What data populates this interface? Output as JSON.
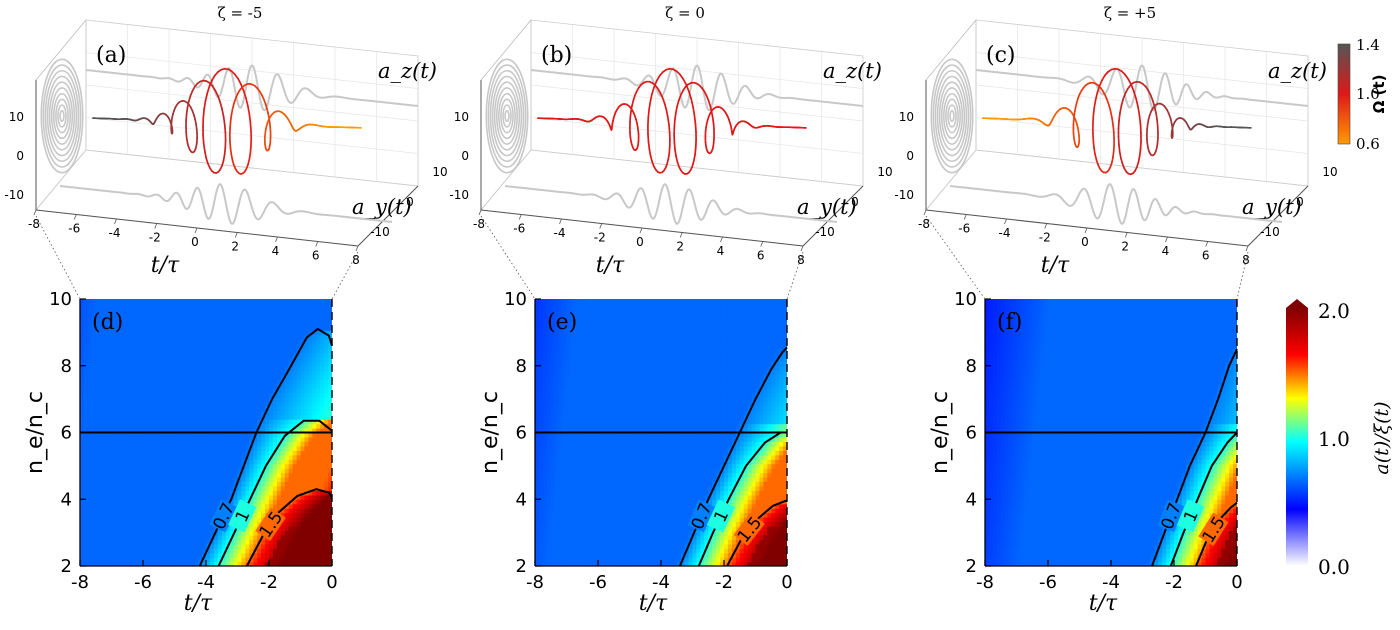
{
  "chart_data": [
    {
      "id": "a",
      "type": "line3d",
      "panel_label": "(a)",
      "title": "ζ = -5",
      "xlabel": "t/τ",
      "series_labels": {
        "z": "a_z(t)",
        "y": "a_y(t)"
      },
      "x_ticks": [
        "-8",
        "-6",
        "-4",
        "-2",
        "0",
        "2",
        "4",
        "6",
        "8"
      ],
      "z_ticks": [
        "10",
        "0",
        "-10"
      ],
      "y_ticks": [
        "10",
        "0",
        "-10"
      ],
      "xlim": [
        -8,
        8
      ],
      "ylim": [
        -15,
        15
      ],
      "zlim": [
        -15,
        15
      ],
      "envelope": {
        "center": 0,
        "width": 2.2,
        "amplitude": 15,
        "cycles_per_tau": 0.85
      },
      "omega_range": [
        0.6,
        1.4
      ],
      "omega_trend": "decreasing"
    },
    {
      "id": "b",
      "type": "line3d",
      "panel_label": "(b)",
      "title": "ζ = 0",
      "xlabel": "t/τ",
      "series_labels": {
        "z": "a_z(t)",
        "y": "a_y(t)"
      },
      "x_ticks": [
        "-8",
        "-6",
        "-4",
        "-2",
        "0",
        "2",
        "4",
        "6",
        "8"
      ],
      "z_ticks": [
        "10",
        "0",
        "-10"
      ],
      "y_ticks": [
        "10",
        "0",
        "-10"
      ],
      "xlim": [
        -8,
        8
      ],
      "ylim": [
        -15,
        15
      ],
      "zlim": [
        -15,
        15
      ],
      "envelope": {
        "center": 0,
        "width": 2.2,
        "amplitude": 15,
        "cycles_per_tau": 0.85
      },
      "omega_range": [
        1.0,
        1.0
      ],
      "omega_trend": "constant"
    },
    {
      "id": "c",
      "type": "line3d",
      "panel_label": "(c)",
      "title": "ζ = +5",
      "xlabel": "t/τ",
      "series_labels": {
        "z": "a_z(t)",
        "y": "a_y(t)"
      },
      "x_ticks": [
        "-8",
        "-6",
        "-4",
        "-2",
        "0",
        "2",
        "4",
        "6",
        "8"
      ],
      "z_ticks": [
        "10",
        "0",
        "-10"
      ],
      "y_ticks": [
        "10",
        "0",
        "-10"
      ],
      "xlim": [
        -8,
        8
      ],
      "ylim": [
        -15,
        15
      ],
      "zlim": [
        -15,
        15
      ],
      "envelope": {
        "center": 0,
        "width": 2.2,
        "amplitude": 15,
        "cycles_per_tau": 0.85
      },
      "omega_range": [
        0.6,
        1.4
      ],
      "omega_trend": "increasing"
    },
    {
      "id": "d",
      "type": "heatmap",
      "panel_label": "(d)",
      "xlabel": "t/τ",
      "ylabel": "n_e/n_c",
      "xlim": [
        -8,
        0
      ],
      "ylim": [
        2,
        10
      ],
      "x_ticks": [
        "-8",
        "-6",
        "-4",
        "-2",
        "0"
      ],
      "y_ticks": [
        "2",
        "4",
        "6",
        "8",
        "10"
      ],
      "hline": 6,
      "contours": [
        {
          "level": 0.7,
          "label": "0.7",
          "points": [
            [
              -4.2,
              2.0
            ],
            [
              -3.7,
              3.0
            ],
            [
              -3.2,
              4.0
            ],
            [
              -2.8,
              5.0
            ],
            [
              -2.4,
              6.0
            ],
            [
              -1.9,
              7.0
            ],
            [
              -1.3,
              8.0
            ],
            [
              -0.8,
              8.85
            ],
            [
              -0.45,
              9.1
            ],
            [
              -0.1,
              8.9
            ],
            [
              0,
              8.6
            ]
          ]
        },
        {
          "level": 1,
          "label": "1",
          "points": [
            [
              -3.6,
              2.0
            ],
            [
              -3.1,
              3.0
            ],
            [
              -2.6,
              4.0
            ],
            [
              -2.1,
              5.0
            ],
            [
              -1.5,
              5.9
            ],
            [
              -0.9,
              6.35
            ],
            [
              -0.4,
              6.35
            ],
            [
              0,
              6.05
            ]
          ]
        },
        {
          "level": 1.5,
          "label": "1.5",
          "points": [
            [
              -2.7,
              2.0
            ],
            [
              -2.2,
              2.9
            ],
            [
              -1.7,
              3.6
            ],
            [
              -1.1,
              4.1
            ],
            [
              -0.5,
              4.3
            ],
            [
              -0.1,
              4.2
            ],
            [
              0,
              4.05
            ]
          ]
        }
      ]
    },
    {
      "id": "e",
      "type": "heatmap",
      "panel_label": "(e)",
      "xlabel": "t/τ",
      "ylabel": "n_e/n_c",
      "xlim": [
        -8,
        0
      ],
      "ylim": [
        2,
        10
      ],
      "x_ticks": [
        "-8",
        "-6",
        "-4",
        "-2",
        "0"
      ],
      "y_ticks": [
        "2",
        "4",
        "6",
        "8",
        "10"
      ],
      "hline": 6,
      "contours": [
        {
          "level": 0.7,
          "label": "0.7",
          "points": [
            [
              -3.4,
              2.0
            ],
            [
              -2.95,
              3.0
            ],
            [
              -2.5,
              4.0
            ],
            [
              -2.0,
              5.0
            ],
            [
              -1.5,
              6.0
            ],
            [
              -1.0,
              7.0
            ],
            [
              -0.5,
              7.9
            ],
            [
              -0.15,
              8.4
            ],
            [
              0,
              8.55
            ]
          ]
        },
        {
          "level": 1,
          "label": "1",
          "points": [
            [
              -2.8,
              2.0
            ],
            [
              -2.35,
              3.0
            ],
            [
              -1.85,
              4.0
            ],
            [
              -1.3,
              5.0
            ],
            [
              -0.7,
              5.7
            ],
            [
              -0.2,
              6.0
            ],
            [
              0,
              6.0
            ]
          ]
        },
        {
          "level": 1.5,
          "label": "1.5",
          "points": [
            [
              -1.9,
              2.0
            ],
            [
              -1.45,
              2.8
            ],
            [
              -0.95,
              3.4
            ],
            [
              -0.45,
              3.8
            ],
            [
              -0.05,
              3.95
            ],
            [
              0,
              3.95
            ]
          ]
        }
      ]
    },
    {
      "id": "f",
      "type": "heatmap",
      "panel_label": "(f)",
      "xlabel": "t/τ",
      "ylabel": "n_e/n_c",
      "xlim": [
        -8,
        0
      ],
      "ylim": [
        2,
        10
      ],
      "x_ticks": [
        "-8",
        "-6",
        "-4",
        "-2",
        "0"
      ],
      "y_ticks": [
        "2",
        "4",
        "6",
        "8",
        "10"
      ],
      "hline": 6,
      "contours": [
        {
          "level": 0.7,
          "label": "0.7",
          "points": [
            [
              -2.7,
              2.0
            ],
            [
              -2.3,
              3.0
            ],
            [
              -1.9,
              4.0
            ],
            [
              -1.5,
              5.0
            ],
            [
              -1.0,
              6.0
            ],
            [
              -0.6,
              7.0
            ],
            [
              -0.25,
              8.0
            ],
            [
              0,
              8.5
            ]
          ]
        },
        {
          "level": 1,
          "label": "1",
          "points": [
            [
              -2.1,
              2.0
            ],
            [
              -1.7,
              3.0
            ],
            [
              -1.25,
              4.0
            ],
            [
              -0.8,
              5.0
            ],
            [
              -0.3,
              5.7
            ],
            [
              0,
              6.0
            ]
          ]
        },
        {
          "level": 1.5,
          "label": "1.5",
          "points": [
            [
              -1.3,
              2.0
            ],
            [
              -0.95,
              2.8
            ],
            [
              -0.55,
              3.4
            ],
            [
              -0.2,
              3.75
            ],
            [
              0,
              3.9
            ]
          ]
        }
      ]
    }
  ],
  "colorbars": {
    "omega": {
      "label": "Ω (t)",
      "ticks": [
        "1.4",
        "1.0",
        "0.6"
      ],
      "colors": [
        "#555555",
        "#e01818",
        "#ff9a00"
      ]
    },
    "amplitude": {
      "label": "a(t)/ξ(t)",
      "ticks": [
        "2.0",
        "1.0",
        "0.0"
      ],
      "colors": [
        "#ffffff",
        "#0000ff",
        "#00ffff",
        "#ffff00",
        "#ff0000",
        "#800000"
      ]
    }
  }
}
